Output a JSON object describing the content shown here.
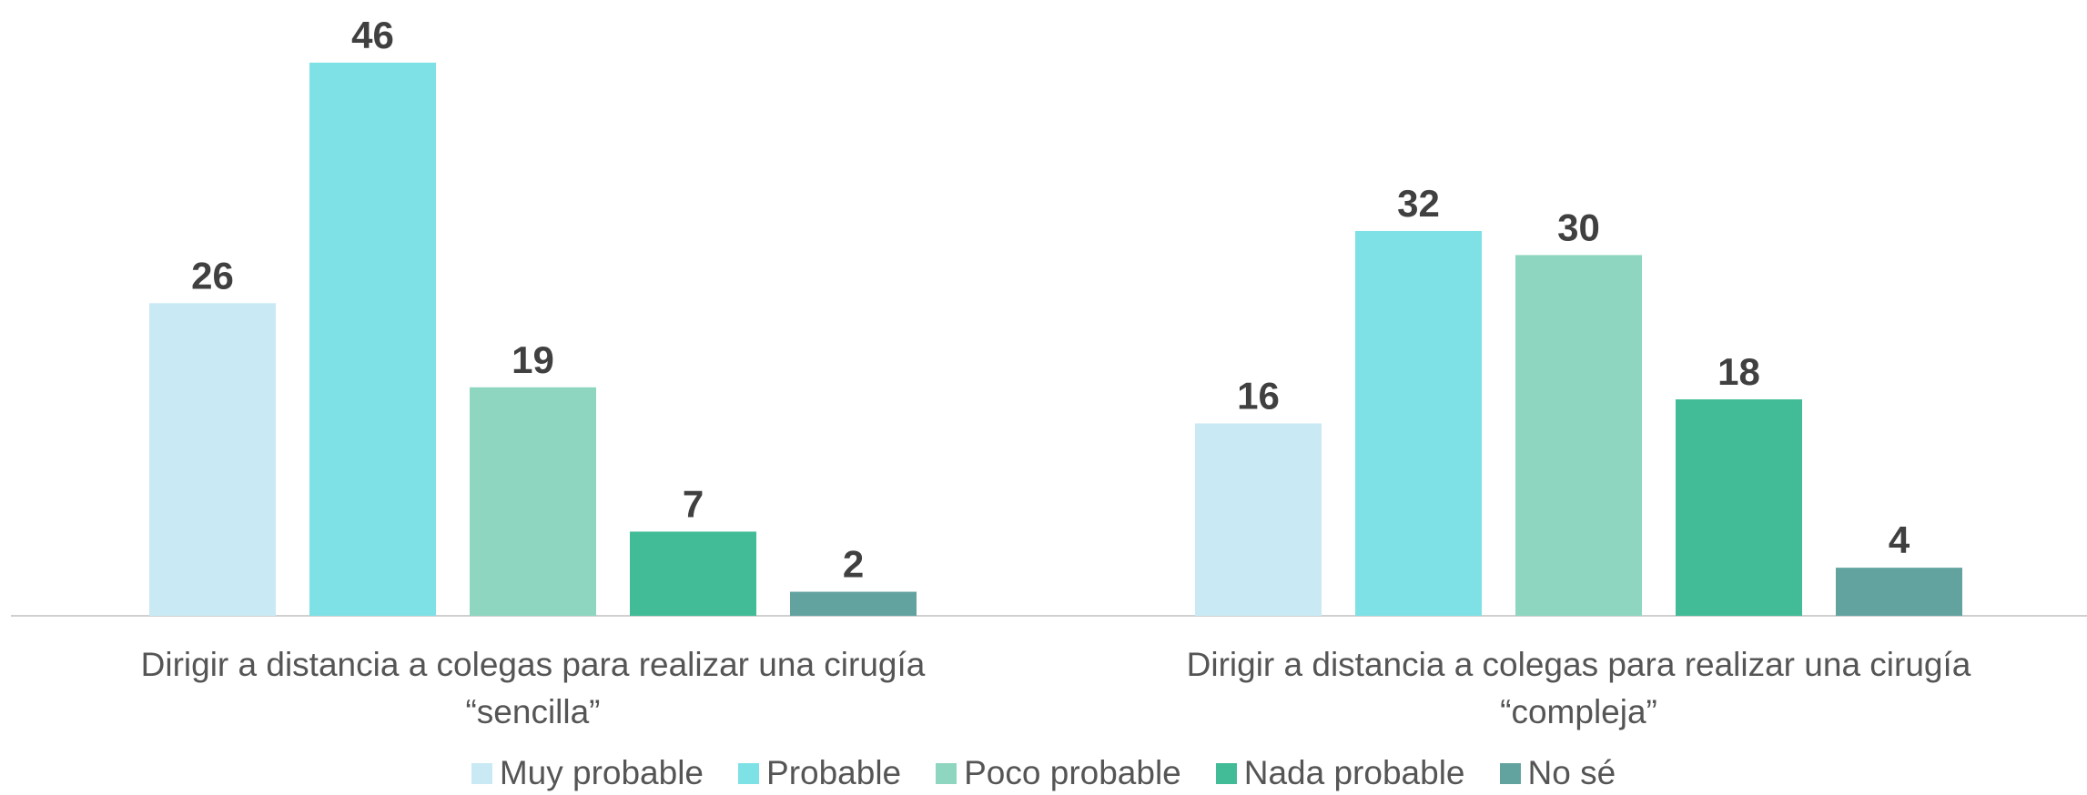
{
  "chart_data": {
    "type": "bar",
    "categories": [
      "Dirigir a distancia a colegas para realizar una cirugía\n“sencilla”",
      "Dirigir a distancia a colegas para realizar una cirugía\n“compleja”"
    ],
    "series": [
      {
        "name": "Muy probable",
        "color": "#c9eaf5",
        "values": [
          26,
          16
        ]
      },
      {
        "name": "Probable",
        "color": "#7ee1e6",
        "values": [
          46,
          32
        ]
      },
      {
        "name": "Poco probable",
        "color": "#8ed6c0",
        "values": [
          19,
          30
        ]
      },
      {
        "name": "Nada probable",
        "color": "#42bb97",
        "values": [
          7,
          18
        ]
      },
      {
        "name": "No sé",
        "color": "#62a39f",
        "values": [
          2,
          4
        ]
      }
    ],
    "legend": "bottom"
  }
}
